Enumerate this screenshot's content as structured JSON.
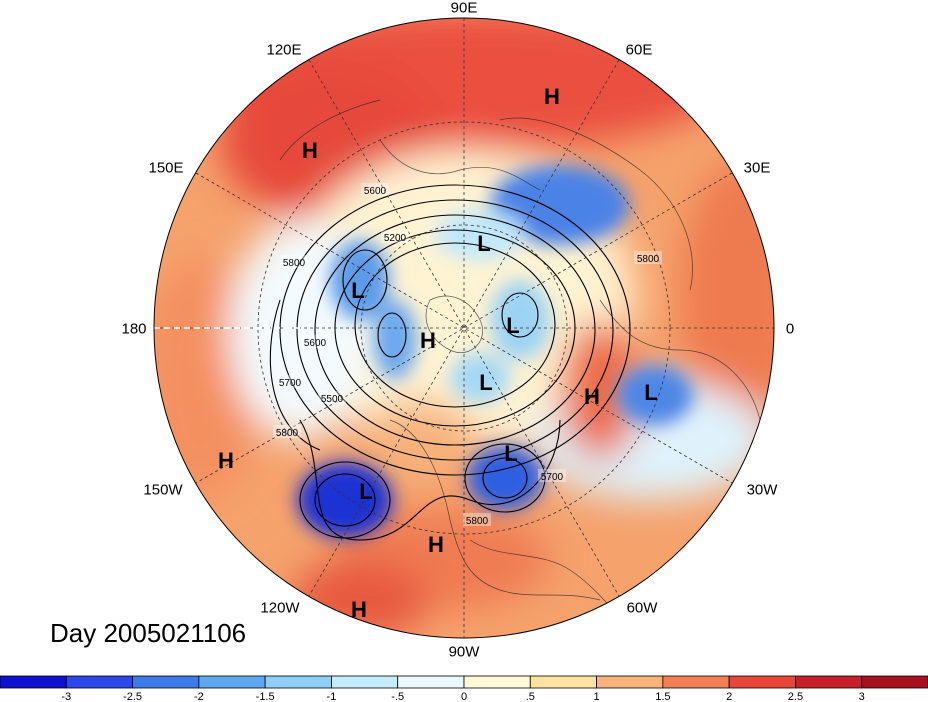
{
  "map": {
    "projection": "north polar stereographic",
    "field": "standardized geopotential height anomaly",
    "contour_interval": 100
  },
  "longitude_labels": {
    "lon_90E": "90E",
    "lon_60E": "60E",
    "lon_120E": "120E",
    "lon_30E": "30E",
    "lon_150E": "150E",
    "lon_0": "0",
    "lon_180": "180",
    "lon_30W": "30W",
    "lon_150W": "150W",
    "lon_60W": "60W",
    "lon_120W": "120W",
    "lon_90W": "90W"
  },
  "contour_labels": [
    "5600",
    "5200",
    "5800",
    "5600",
    "5700",
    "5500",
    "5800",
    "5800",
    "5700",
    "5800"
  ],
  "pressure_centers": [
    {
      "text": "H",
      "kind": "high"
    },
    {
      "text": "H",
      "kind": "high"
    },
    {
      "text": "L",
      "kind": "low"
    },
    {
      "text": "L",
      "kind": "low"
    },
    {
      "text": "H",
      "kind": "high"
    },
    {
      "text": "L",
      "kind": "low"
    },
    {
      "text": "L",
      "kind": "low"
    },
    {
      "text": "H",
      "kind": "high"
    },
    {
      "text": "L",
      "kind": "low"
    },
    {
      "text": "H",
      "kind": "high"
    },
    {
      "text": "L",
      "kind": "low"
    },
    {
      "text": "L",
      "kind": "low"
    },
    {
      "text": "H",
      "kind": "high"
    },
    {
      "text": "H",
      "kind": "high"
    }
  ],
  "day_label": "Day 2005021106",
  "colorbar": {
    "ticks": [
      "-3",
      "-2.5",
      "-2",
      "-1.5",
      "-1",
      "-.5",
      "0",
      ".5",
      "1",
      "1.5",
      "2",
      "2.5",
      "3"
    ],
    "colors": [
      "#1010d0",
      "#2b48e8",
      "#3d7ce8",
      "#5ea8ef",
      "#8fcff5",
      "#c4ecfb",
      "#eaf7fd",
      "#fff8d6",
      "#fde2a0",
      "#f8b27a",
      "#f47f55",
      "#e8473a",
      "#c8202a",
      "#a8101e"
    ]
  }
}
